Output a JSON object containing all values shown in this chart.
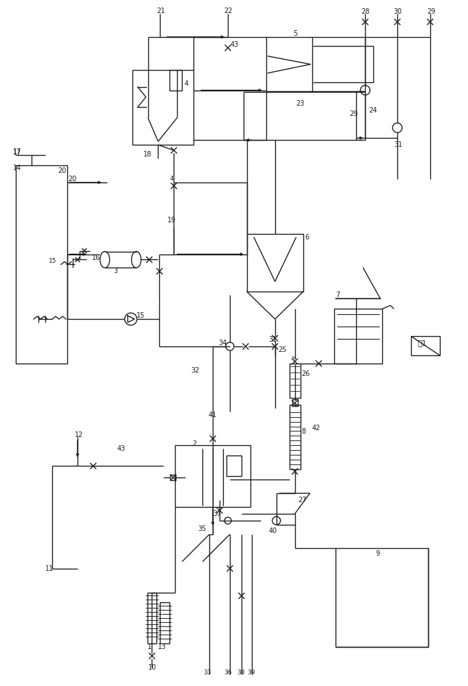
{
  "bg_color": "#ffffff",
  "lc": "#1a1a1a",
  "lw": 1.0,
  "fig_width": 6.82,
  "fig_height": 10.0,
  "dpi": 100
}
